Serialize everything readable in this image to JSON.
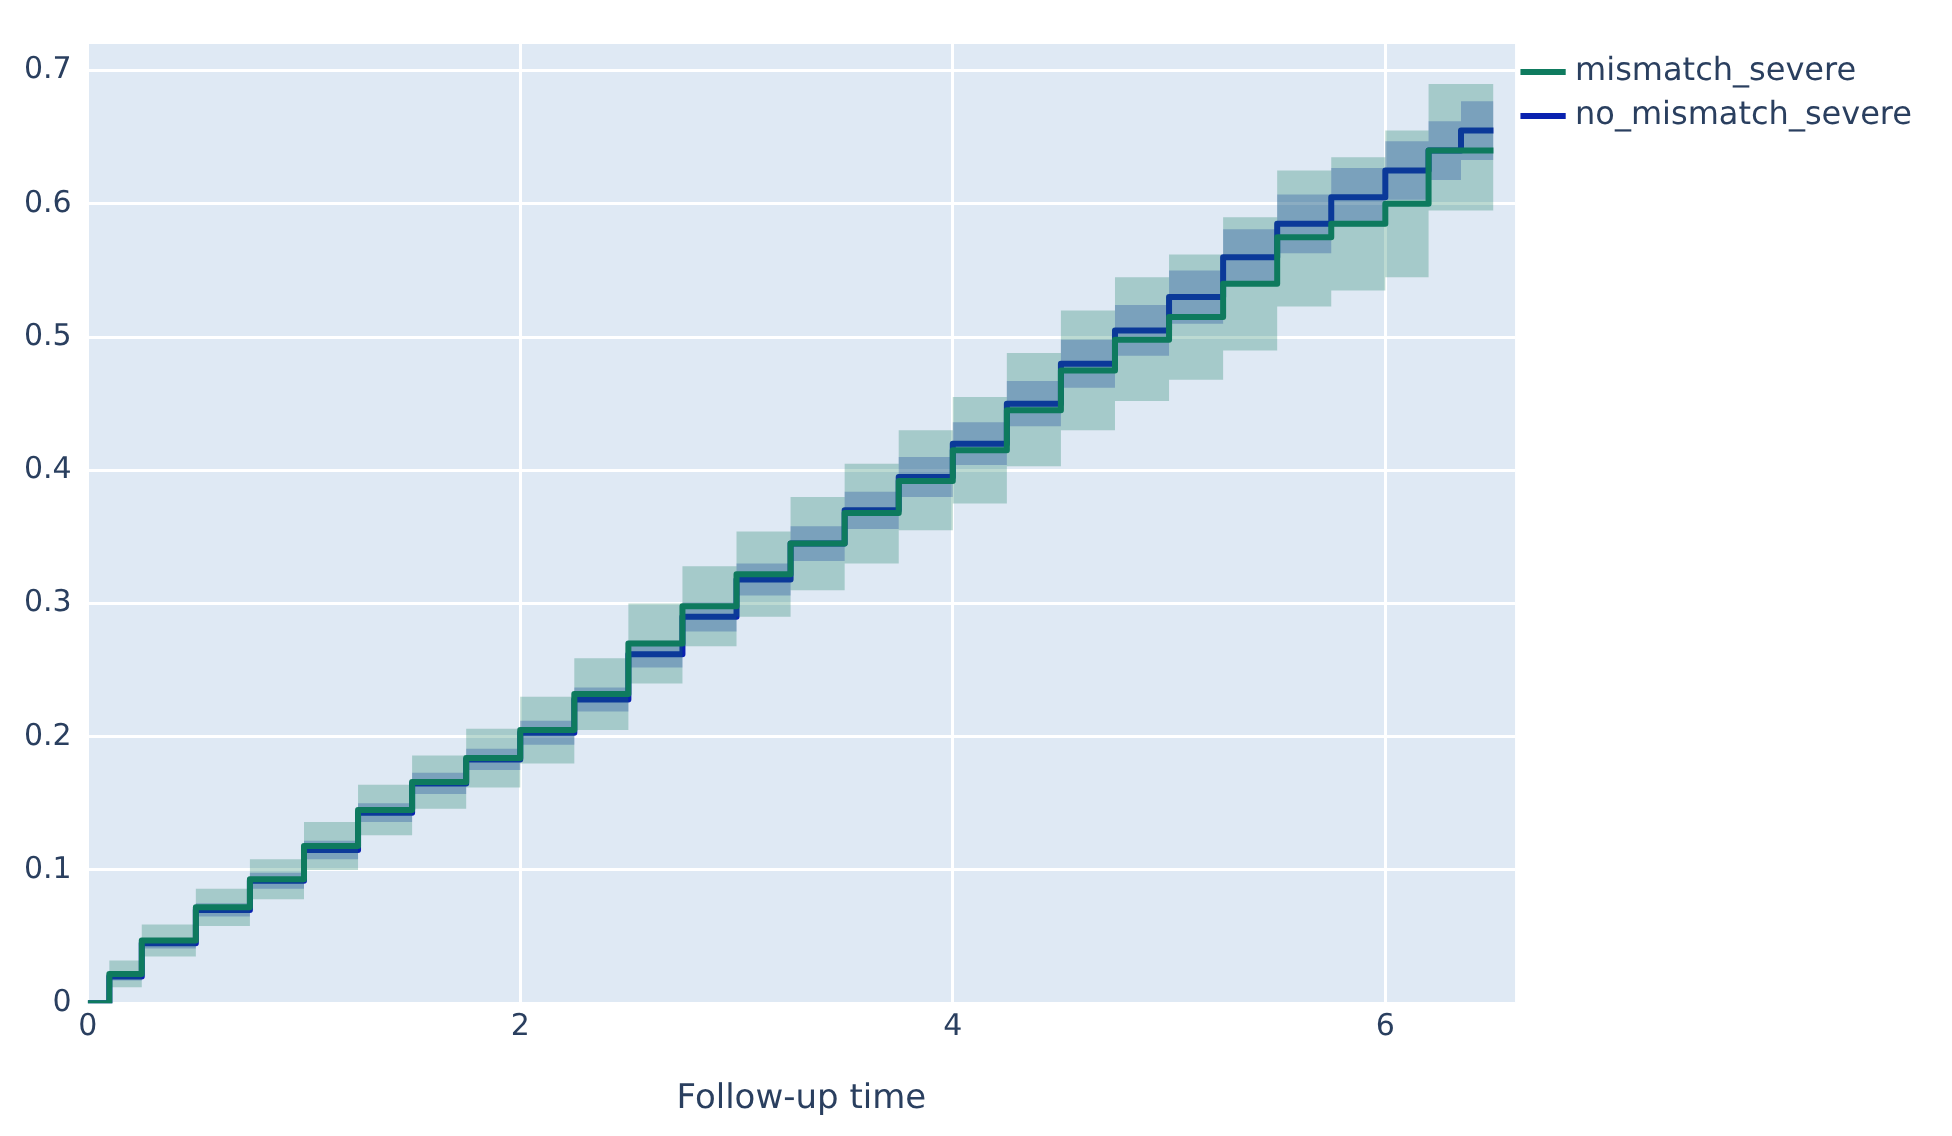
{
  "chart_data": {
    "type": "step",
    "xlabel": "Follow-up time",
    "x": [
      0,
      0.1,
      0.25,
      0.5,
      0.75,
      1,
      1.25,
      1.5,
      1.75,
      2,
      2.25,
      2.5,
      2.75,
      3,
      3.25,
      3.5,
      3.75,
      4,
      4.25,
      4.5,
      4.75,
      5,
      5.25,
      5.5,
      5.75,
      6,
      6.2,
      6.35,
      6.5
    ],
    "series": [
      {
        "name": "mismatch_severe",
        "color": "#0f7b5f",
        "values": [
          0,
          0,
          0.022,
          0.047,
          0.072,
          0.093,
          0.118,
          0.145,
          0.166,
          0.184,
          0.205,
          0.232,
          0.27,
          0.298,
          0.322,
          0.345,
          0.368,
          0.392,
          0.415,
          0.445,
          0.475,
          0.498,
          0.515,
          0.54,
          0.575,
          0.585,
          0.6,
          0.64,
          0.64
        ],
        "lower": [
          0,
          0,
          0.012,
          0.035,
          0.058,
          0.078,
          0.1,
          0.126,
          0.146,
          0.162,
          0.18,
          0.205,
          0.24,
          0.268,
          0.29,
          0.31,
          0.33,
          0.355,
          0.375,
          0.403,
          0.43,
          0.452,
          0.468,
          0.49,
          0.523,
          0.535,
          0.545,
          0.595,
          0.595
        ],
        "upper": [
          0,
          0,
          0.032,
          0.059,
          0.086,
          0.108,
          0.136,
          0.164,
          0.186,
          0.206,
          0.23,
          0.259,
          0.3,
          0.328,
          0.354,
          0.38,
          0.405,
          0.43,
          0.455,
          0.488,
          0.52,
          0.545,
          0.562,
          0.59,
          0.625,
          0.635,
          0.655,
          0.69,
          0.69
        ]
      },
      {
        "name": "no_mismatch_severe",
        "color": "#0a22b0",
        "values": [
          0,
          0,
          0.02,
          0.045,
          0.07,
          0.092,
          0.115,
          0.143,
          0.165,
          0.183,
          0.203,
          0.228,
          0.262,
          0.29,
          0.318,
          0.345,
          0.37,
          0.395,
          0.42,
          0.45,
          0.48,
          0.505,
          0.53,
          0.56,
          0.585,
          0.605,
          0.625,
          0.64,
          0.655
        ],
        "lower": [
          0,
          0,
          0.017,
          0.041,
          0.065,
          0.086,
          0.108,
          0.136,
          0.157,
          0.175,
          0.194,
          0.219,
          0.252,
          0.279,
          0.306,
          0.332,
          0.356,
          0.38,
          0.404,
          0.433,
          0.462,
          0.486,
          0.51,
          0.539,
          0.563,
          0.583,
          0.603,
          0.618,
          0.633
        ],
        "upper": [
          0,
          0,
          0.023,
          0.049,
          0.075,
          0.098,
          0.122,
          0.15,
          0.173,
          0.191,
          0.212,
          0.237,
          0.272,
          0.301,
          0.33,
          0.358,
          0.384,
          0.41,
          0.436,
          0.467,
          0.498,
          0.524,
          0.55,
          0.581,
          0.607,
          0.627,
          0.647,
          0.662,
          0.677
        ]
      }
    ],
    "xlim": [
      0,
      6.6
    ],
    "xticks": [
      0,
      2,
      4,
      6
    ],
    "ylim": [
      0,
      0.72
    ],
    "yticks": [
      0,
      0.1,
      0.2,
      0.3,
      0.4,
      0.5,
      0.6,
      0.7
    ],
    "grid": true,
    "legend": "right"
  }
}
